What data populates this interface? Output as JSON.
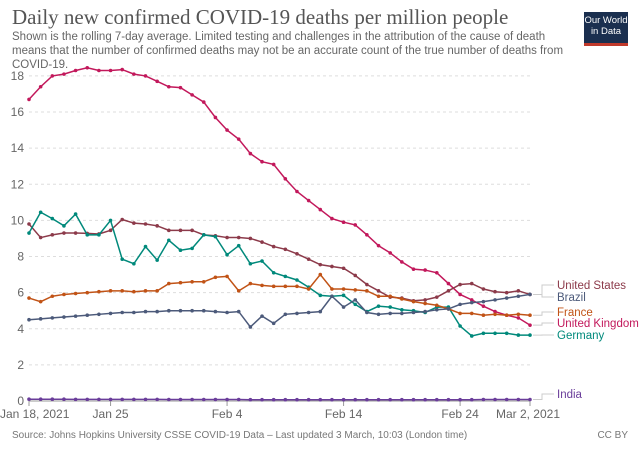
{
  "title": "Daily new confirmed COVID-19 deaths per million people",
  "subtitle": "Shown is the rolling 7-day average. Limited testing and challenges in the attribution of the cause of death means that the number of confirmed deaths may not be an accurate count of the true number of deaths from COVID-19.",
  "logo": "Our World in Data",
  "footer": "Source: Johns Hopkins University CSSE COVID-19 Data – Last updated 3 March, 10:03 (London time)",
  "license": "CC BY",
  "chart_data": {
    "type": "line",
    "title": "Daily new confirmed COVID-19 deaths per million people",
    "x_start": "2021-01-18",
    "x_end": "2021-03-02",
    "x_ticks": [
      "Jan 18, 2021",
      "Jan 25",
      "Feb 4",
      "Feb 14",
      "Feb 24",
      "Mar 2, 2021"
    ],
    "x_tick_days": [
      0,
      7,
      17,
      27,
      37,
      43
    ],
    "y_ticks": [
      0,
      2,
      4,
      6,
      8,
      10,
      12,
      14,
      16,
      18
    ],
    "ylim": [
      0,
      18.5
    ],
    "grid": true,
    "legend": "right-end labels",
    "series": [
      {
        "name": "United Kingdom",
        "color": "#c2185b",
        "values": [
          16.7,
          17.4,
          18.0,
          18.1,
          18.3,
          18.45,
          18.3,
          18.3,
          18.35,
          18.1,
          18.0,
          17.7,
          17.4,
          17.35,
          16.95,
          16.55,
          15.7,
          15.0,
          14.5,
          13.7,
          13.25,
          13.1,
          12.3,
          11.6,
          11.1,
          10.6,
          10.1,
          9.9,
          9.75,
          9.2,
          8.6,
          8.2,
          7.7,
          7.3,
          7.25,
          7.1,
          6.5,
          5.9,
          5.6,
          5.25,
          4.95,
          4.75,
          4.6,
          4.2
        ]
      },
      {
        "name": "United States",
        "color": "#8c3a4a",
        "values": [
          9.8,
          9.05,
          9.2,
          9.3,
          9.3,
          9.28,
          9.25,
          9.45,
          10.05,
          9.85,
          9.8,
          9.7,
          9.45,
          9.45,
          9.45,
          9.2,
          9.15,
          9.05,
          9.05,
          9.0,
          8.8,
          8.55,
          8.4,
          8.15,
          7.85,
          7.55,
          7.45,
          7.35,
          6.95,
          6.45,
          6.1,
          5.75,
          5.7,
          5.55,
          5.6,
          5.75,
          6.1,
          6.45,
          6.5,
          6.2,
          6.05,
          6.0,
          6.1,
          5.9
        ]
      },
      {
        "name": "Germany",
        "color": "#00897b",
        "values": [
          9.3,
          10.45,
          10.1,
          9.7,
          10.35,
          9.2,
          9.2,
          10.0,
          7.85,
          7.6,
          8.55,
          7.8,
          8.9,
          8.35,
          8.45,
          9.2,
          9.1,
          8.1,
          8.6,
          7.6,
          7.75,
          7.1,
          6.9,
          6.7,
          6.3,
          5.85,
          5.8,
          5.85,
          5.35,
          4.95,
          5.25,
          5.2,
          5.05,
          5.0,
          4.9,
          5.2,
          5.2,
          4.15,
          3.6,
          3.75,
          3.75,
          3.75,
          3.65,
          3.65
        ]
      },
      {
        "name": "France",
        "color": "#c15316",
        "values": [
          5.7,
          5.5,
          5.8,
          5.9,
          5.95,
          6.0,
          6.05,
          6.1,
          6.1,
          6.05,
          6.1,
          6.1,
          6.5,
          6.55,
          6.6,
          6.6,
          6.85,
          6.9,
          6.1,
          6.5,
          6.4,
          6.35,
          6.35,
          6.35,
          6.2,
          7.0,
          6.2,
          6.2,
          6.15,
          6.1,
          5.8,
          5.8,
          5.65,
          5.5,
          5.4,
          5.3,
          5.1,
          4.85,
          4.85,
          4.75,
          4.8,
          4.75,
          4.8,
          4.75
        ]
      },
      {
        "name": "Brazil",
        "color": "#4c5a7a",
        "values": [
          4.5,
          4.55,
          4.6,
          4.65,
          4.7,
          4.75,
          4.8,
          4.85,
          4.9,
          4.9,
          4.95,
          4.95,
          5.0,
          5.0,
          5.0,
          5.0,
          4.95,
          4.9,
          4.95,
          4.1,
          4.7,
          4.3,
          4.8,
          4.85,
          4.9,
          4.95,
          5.8,
          5.2,
          5.6,
          4.9,
          4.8,
          4.85,
          4.85,
          4.9,
          4.95,
          5.05,
          5.1,
          5.35,
          5.45,
          5.5,
          5.6,
          5.7,
          5.8,
          5.9
        ]
      },
      {
        "name": "India",
        "color": "#6a3d9a",
        "values": [
          0.1,
          0.1,
          0.1,
          0.1,
          0.09,
          0.09,
          0.09,
          0.09,
          0.09,
          0.09,
          0.09,
          0.09,
          0.08,
          0.08,
          0.08,
          0.08,
          0.08,
          0.08,
          0.08,
          0.07,
          0.07,
          0.07,
          0.07,
          0.07,
          0.07,
          0.07,
          0.07,
          0.07,
          0.07,
          0.07,
          0.07,
          0.07,
          0.07,
          0.07,
          0.07,
          0.07,
          0.07,
          0.07,
          0.07,
          0.08,
          0.08,
          0.08,
          0.08,
          0.08
        ]
      }
    ]
  }
}
